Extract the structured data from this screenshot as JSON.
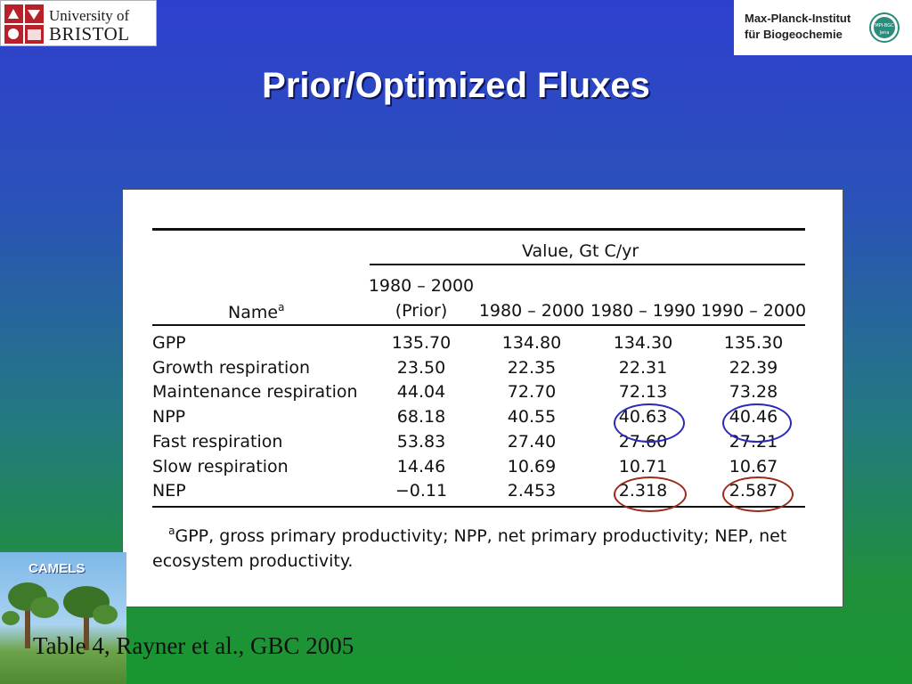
{
  "logos": {
    "bristol_line1": "University of",
    "bristol_line2": "BRISTOL",
    "mpi_line1": "Max-Planck-Institut",
    "mpi_line2": "für Biogeochemie",
    "mpi_emblem_top": "MPI-BGC",
    "mpi_emblem_bottom": "Jena",
    "camels": "CAMELS"
  },
  "title": "Prior/Optimized Fluxes",
  "table": {
    "value_header": "Value, Gt C/yr",
    "name_header": "Name",
    "name_sup": "a",
    "columns": [
      {
        "line1": "1980 – 2000",
        "line2": "(Prior)"
      },
      {
        "line1": "",
        "line2": "1980 – 2000"
      },
      {
        "line1": "",
        "line2": "1980 – 1990"
      },
      {
        "line1": "",
        "line2": "1990 – 2000"
      }
    ],
    "rows": [
      {
        "name": "GPP",
        "values": [
          "135.70",
          "134.80",
          "134.30",
          "135.30"
        ]
      },
      {
        "name": "Growth respiration",
        "values": [
          "23.50",
          "22.35",
          "22.31",
          "22.39"
        ]
      },
      {
        "name": "Maintenance respiration",
        "values": [
          "44.04",
          "72.70",
          "72.13",
          "73.28"
        ]
      },
      {
        "name": "NPP",
        "values": [
          "68.18",
          "40.55",
          "40.63",
          "40.46"
        ]
      },
      {
        "name": "Fast respiration",
        "values": [
          "53.83",
          "27.40",
          "27.60",
          "27.21"
        ]
      },
      {
        "name": "Slow respiration",
        "values": [
          "14.46",
          "10.69",
          "10.71",
          "10.67"
        ]
      },
      {
        "name": "NEP",
        "values": [
          "−0.11",
          "2.453",
          "2.318",
          "2.587"
        ]
      }
    ],
    "footnote_sup": "a",
    "footnote": "GPP, gross primary productivity; NPP, net primary productivity; NEP, net ecosystem productivity."
  },
  "caption": "Table 4, Rayner et al., GBC 2005",
  "colors": {
    "annotation_blue": "#2a2ab8",
    "annotation_red": "#9a2a1a"
  }
}
